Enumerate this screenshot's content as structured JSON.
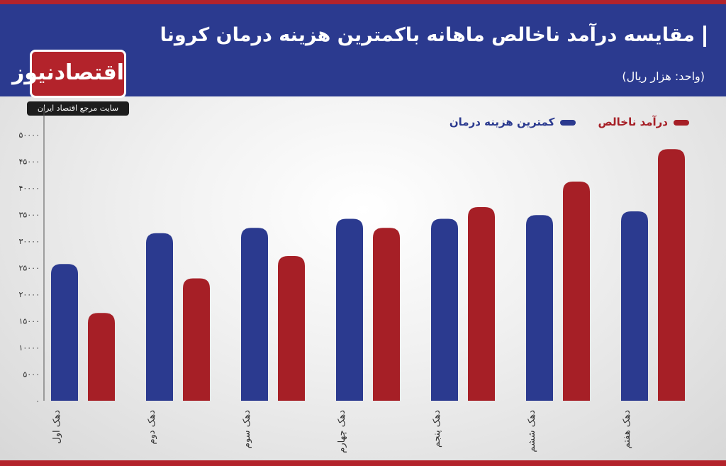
{
  "header": {
    "title": "مقایسه درآمد ناخالص ماهانه باکمترین هزینه درمان کرونا",
    "unit": "(واحد: هزار ریال)"
  },
  "logo": {
    "name": "اقتصادنیوز",
    "tagline": "سایت مرجع اقتصاد ایران"
  },
  "colors": {
    "blue": "#2b3a8f",
    "red": "#a61f26"
  },
  "chart_data": {
    "type": "bar",
    "categories": [
      "دهک اول",
      "دهک دوم",
      "دهک سوم",
      "دهک چهارم",
      "دهک پنجم",
      "دهک ششم",
      "دهک هفتم"
    ],
    "series": [
      {
        "name": "کمترین هزینه درمان",
        "color": "#2b3a8f",
        "values": [
          25700,
          31500,
          32500,
          34200,
          34200,
          34900,
          35600
        ]
      },
      {
        "name": "درآمد ناخالص",
        "color": "#a61f26",
        "values": [
          16500,
          23000,
          27200,
          32500,
          36400,
          41200,
          47300
        ]
      }
    ],
    "y_ticks": [
      "۵۰۰۰۰",
      "۴۵۰۰۰",
      "۴۰۰۰۰",
      "۳۵۰۰۰",
      "۳۰۰۰۰",
      "۲۵۰۰۰",
      "۲۰۰۰۰",
      "۱۵۰۰۰",
      "۱۰۰۰۰",
      "۵۰۰۰",
      "۰"
    ],
    "ylim": [
      0,
      50000
    ],
    "legend_position": "top-right",
    "grid": false
  }
}
